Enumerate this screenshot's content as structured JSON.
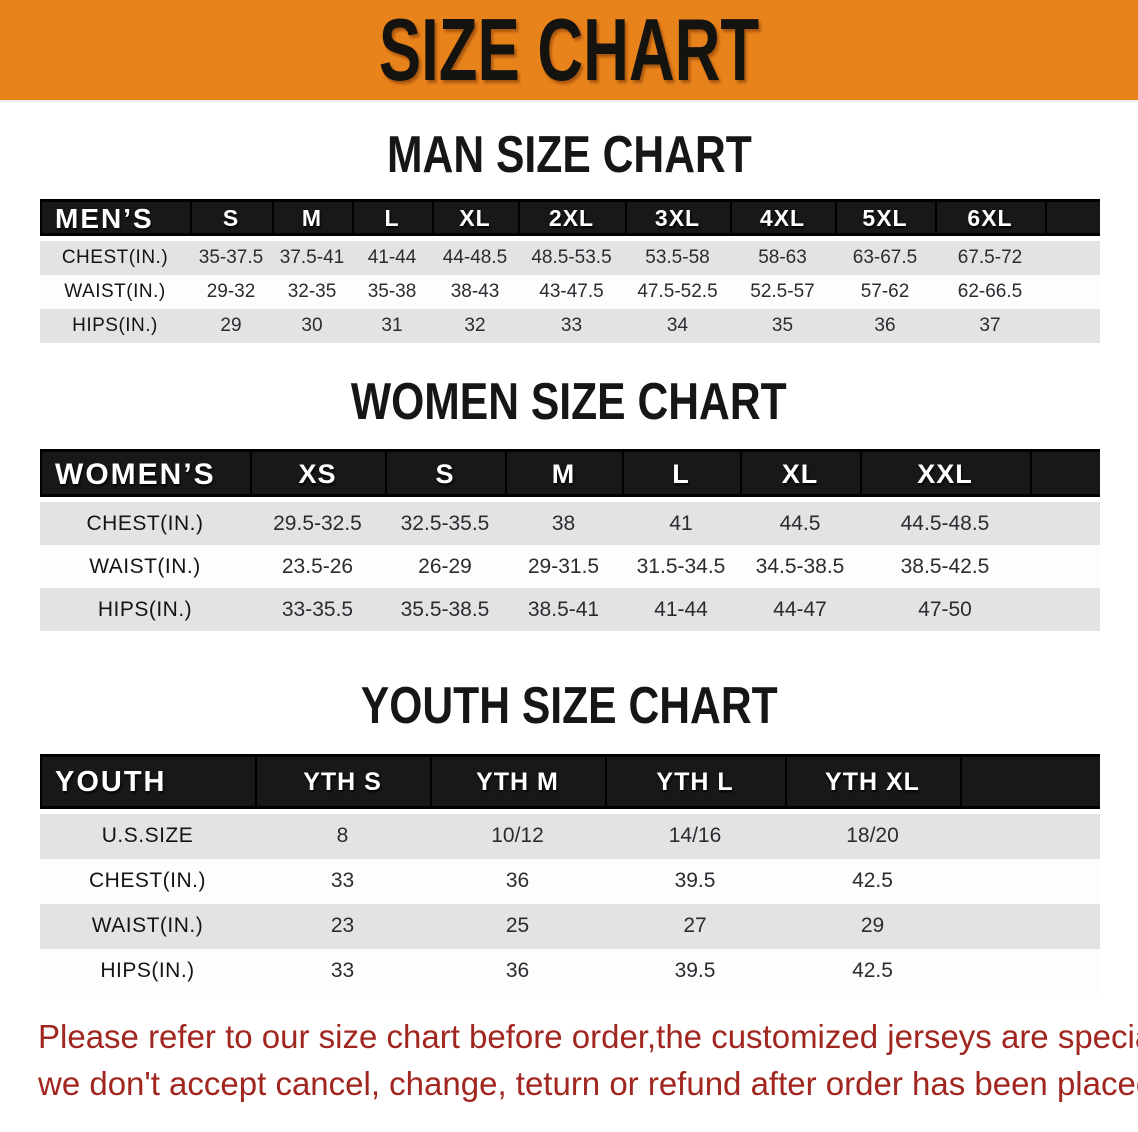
{
  "banner": {
    "title": "SIZE CHART",
    "bg_color": "#E8821B"
  },
  "sections": [
    {
      "heading": "MAN SIZE CHART",
      "corner": "MEN’S",
      "columns": [
        "S",
        "M",
        "L",
        "XL",
        "2XL",
        "3XL",
        "4XL",
        "5XL",
        "6XL"
      ],
      "rows": [
        {
          "label": "CHEST(IN.)",
          "values": [
            "35-37.5",
            "37.5-41",
            "41-44",
            "44-48.5",
            "48.5-53.5",
            "53.5-58",
            "58-63",
            "63-67.5",
            "67.5-72"
          ]
        },
        {
          "label": "WAIST(IN.)",
          "values": [
            "29-32",
            "32-35",
            "35-38",
            "38-43",
            "43-47.5",
            "47.5-52.5",
            "52.5-57",
            "57-62",
            "62-66.5"
          ]
        },
        {
          "label": "HIPS(IN.)",
          "values": [
            "29",
            "30",
            "31",
            "32",
            "33",
            "34",
            "35",
            "36",
            "37"
          ]
        }
      ]
    },
    {
      "heading": "WOMEN SIZE CHART",
      "corner": "WOMEN’S",
      "columns": [
        "XS",
        "S",
        "M",
        "L",
        "XL",
        "XXL"
      ],
      "rows": [
        {
          "label": "CHEST(IN.)",
          "values": [
            "29.5-32.5",
            "32.5-35.5",
            "38",
            "41",
            "44.5",
            "44.5-48.5"
          ]
        },
        {
          "label": "WAIST(IN.)",
          "values": [
            "23.5-26",
            "26-29",
            "29-31.5",
            "31.5-34.5",
            "34.5-38.5",
            "38.5-42.5"
          ]
        },
        {
          "label": "HIPS(IN.)",
          "values": [
            "33-35.5",
            "35.5-38.5",
            "38.5-41",
            "41-44",
            "44-47",
            "47-50"
          ]
        }
      ]
    },
    {
      "heading": "YOUTH SIZE CHART",
      "corner": "YOUTH",
      "columns": [
        "YTH S",
        "YTH M",
        "YTH L",
        "YTH XL"
      ],
      "rows": [
        {
          "label": "U.S.SIZE",
          "values": [
            "8",
            "10/12",
            "14/16",
            "18/20"
          ]
        },
        {
          "label": "CHEST(IN.)",
          "values": [
            "33",
            "36",
            "39.5",
            "42.5"
          ]
        },
        {
          "label": "WAIST(IN.)",
          "values": [
            "23",
            "25",
            "27",
            "29"
          ]
        },
        {
          "label": "HIPS(IN.)",
          "values": [
            "33",
            "36",
            "39.5",
            "42.5"
          ]
        }
      ]
    }
  ],
  "disclaimer": {
    "line1": "Please refer to our size chart before order,the customized jerseys are special products,",
    "line2": "we don't accept cancel, change, teturn or refund after order has been placed!",
    "color": "#A1261F"
  }
}
